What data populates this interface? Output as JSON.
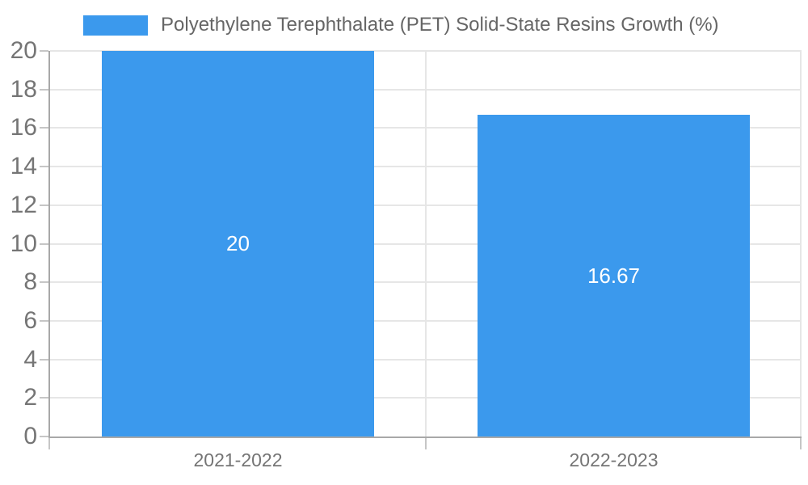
{
  "legend": {
    "items": [
      {
        "label": "Polyethylene Terephthalate (PET) Solid-State Resins Growth (%)",
        "color": "#3B99ED"
      }
    ]
  },
  "chart_data": {
    "type": "bar",
    "title": "Polyethylene Terephthalate (PET) Solid-State Resins Growth (%)",
    "categories": [
      "2021-2022",
      "2022-2023"
    ],
    "values": [
      20,
      16.67
    ],
    "value_labels": [
      "20",
      "16.67"
    ],
    "xlabel": "",
    "ylabel": "",
    "ylim": [
      0,
      20
    ],
    "yticks": [
      0,
      2,
      4,
      6,
      8,
      10,
      12,
      14,
      16,
      18,
      20
    ],
    "grid": true,
    "legend_position": "top",
    "bar_color": "#3B99ED",
    "value_label_color": "#ffffff"
  },
  "style": {
    "grid_color": "#e6e6e6",
    "axis_color": "#a8a8a8",
    "tick_color": "#c6c6c6",
    "tick_label_color": "#757575",
    "legend_text_color": "#666666",
    "background": "#ffffff"
  }
}
